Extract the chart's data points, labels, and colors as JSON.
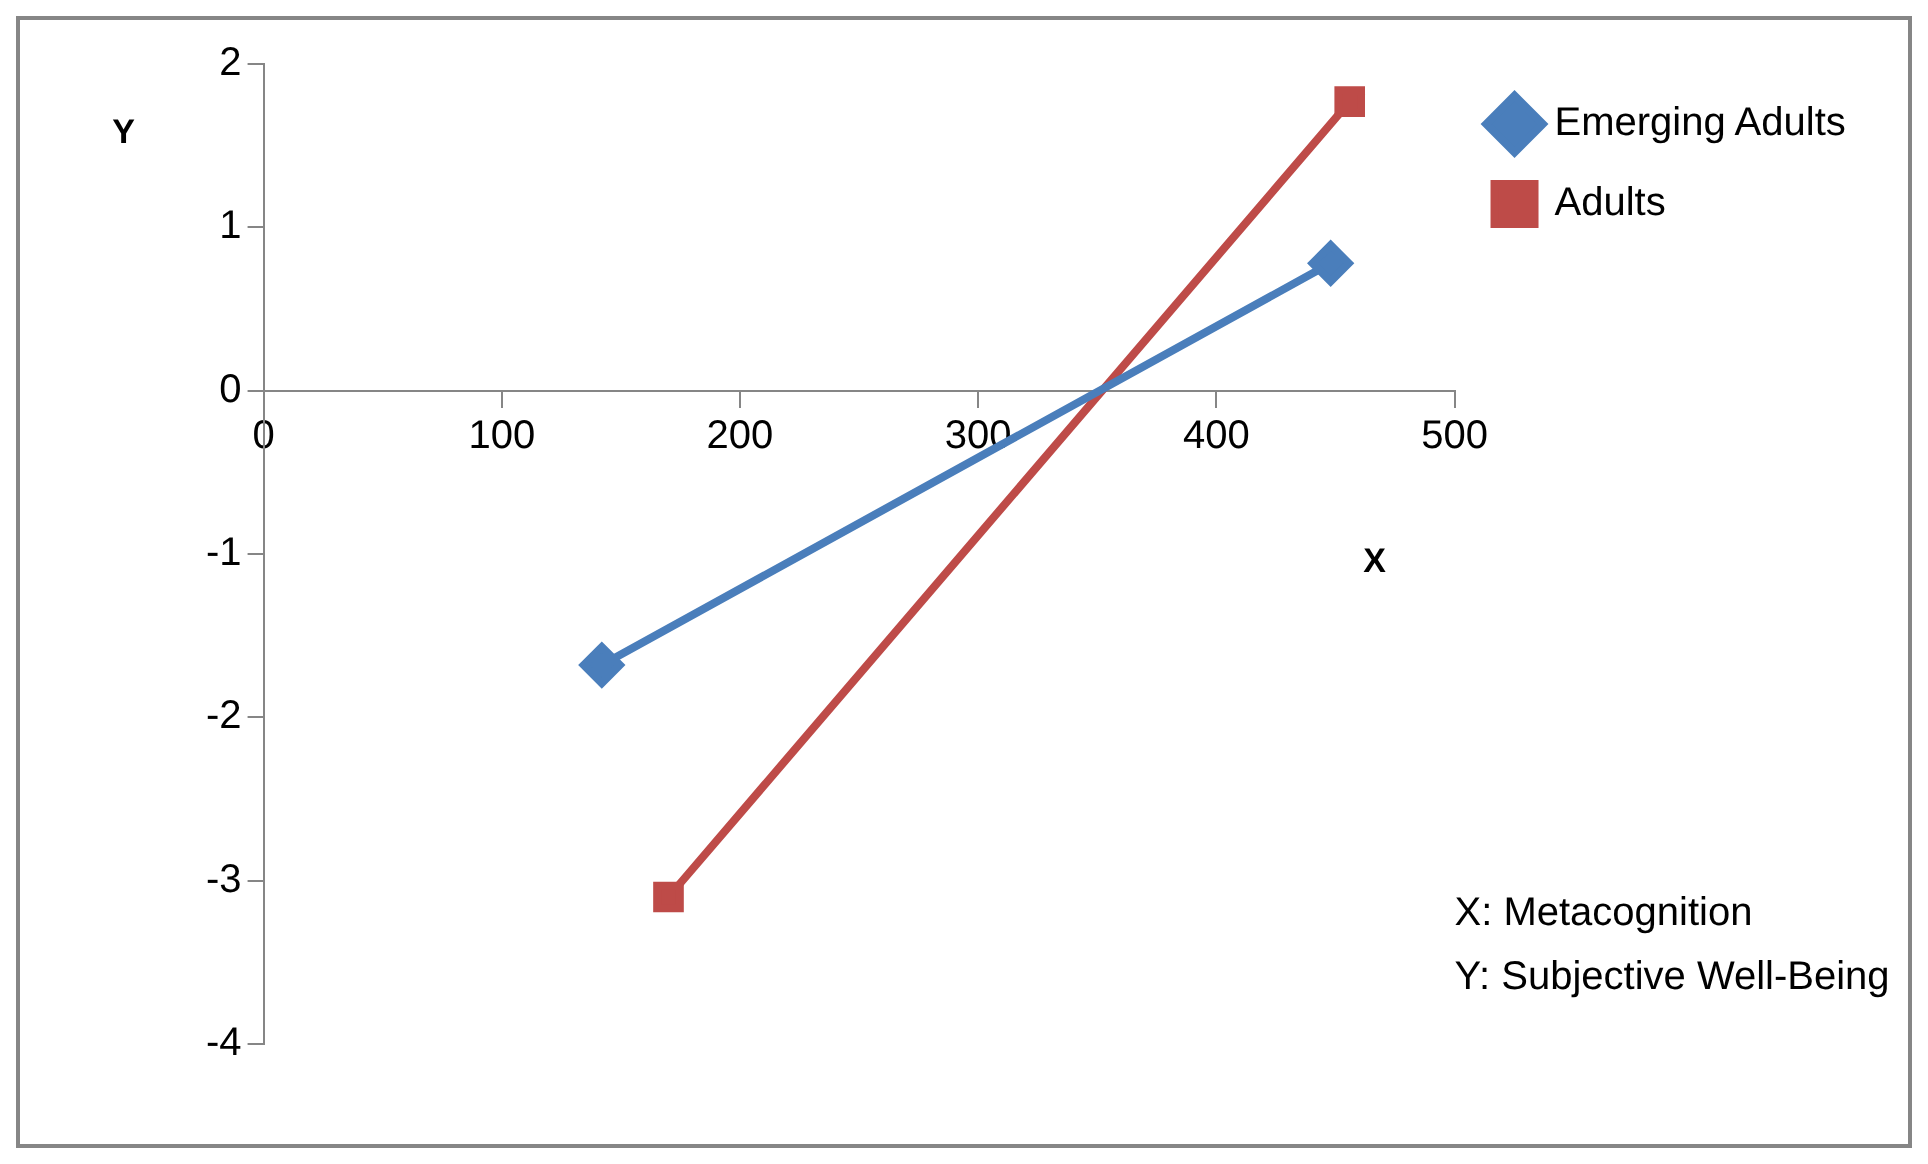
{
  "chart_data": {
    "type": "line",
    "xlabel": "X",
    "ylabel": "Y",
    "annotations": [
      "X: Metacognition",
      "Y: Subjective Well-Being"
    ],
    "series": [
      {
        "name": "Emerging Adults",
        "color": "#4a7ebb",
        "marker": "diamond",
        "x": [
          142,
          448
        ],
        "values": [
          -1.68,
          0.78
        ]
      },
      {
        "name": "Adults",
        "color": "#be4b48",
        "marker": "square",
        "x": [
          170,
          456
        ],
        "values": [
          -3.1,
          1.77
        ]
      }
    ],
    "xlim": [
      0,
      500
    ],
    "xticks": [
      0,
      100,
      200,
      300,
      400,
      500
    ],
    "ylim": [
      -4,
      2
    ],
    "yticks": [
      -4,
      -3,
      -2,
      -1,
      0,
      1,
      2
    ],
    "grid": false,
    "legend": "right",
    "line_style": "solid"
  }
}
